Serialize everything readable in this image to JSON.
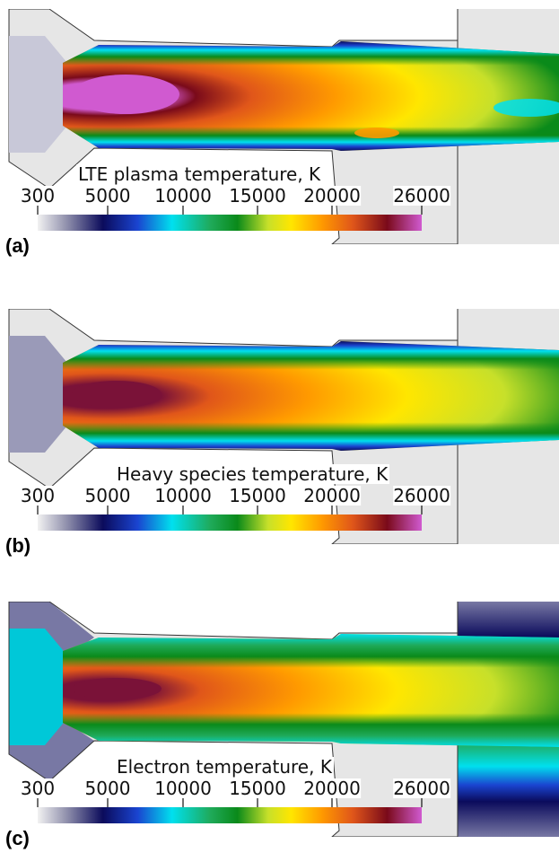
{
  "panels": [
    {
      "id": "a",
      "label": "(a)",
      "title": "LTE plasma temperature, K",
      "wall_fill": "#e6e6e6",
      "core_color": "#d05ad0"
    },
    {
      "id": "b",
      "label": "(b)",
      "title": "Heavy species temperature, K",
      "wall_fill": "#e6e6e6",
      "core_color": "#7a1238"
    },
    {
      "id": "c",
      "label": "(c)",
      "title": "Electron temperature, K",
      "wall_fill": "#7878a4",
      "core_color": "#7a1238"
    }
  ],
  "colorbar": {
    "ticks": [
      "300",
      "5000",
      "10000",
      "15000",
      "20000",
      "26000"
    ],
    "colors": [
      "#f2f2f2",
      "#8a8aa8",
      "#0b0b5c",
      "#1a44d0",
      "#00e0ee",
      "#1faa5a",
      "#0a8a1a",
      "#c7e02a",
      "#ffe600",
      "#ff9a00",
      "#e0561a",
      "#7a0a1a",
      "#d05ad0"
    ]
  }
}
